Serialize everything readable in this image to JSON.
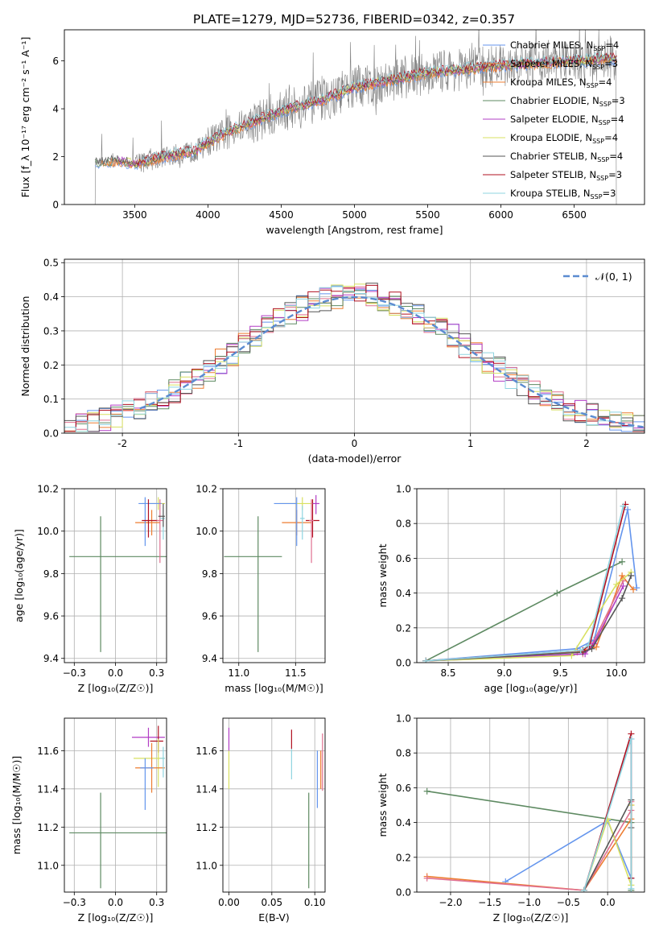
{
  "figure_title": "PLATE=1279, MJD=52736, FIBERID=0342, z=0.357",
  "palette": [
    "#6495ed",
    "#ed7d31",
    "#ed7d31",
    "#5e8a62",
    "#b23dc5",
    "#d8e060",
    "#555555",
    "#b11020",
    "#8fd4e0"
  ],
  "chart_data": [
    {
      "id": "spectrum",
      "type": "line",
      "xlabel": "wavelength [Angstrom, rest frame]",
      "ylabel": "Flux [f_λ 10⁻¹⁷ erg cm⁻² s⁻¹ A⁻¹]",
      "xlim": [
        3020,
        6980
      ],
      "ylim": [
        0,
        7.3
      ],
      "xticks": [
        3500,
        4000,
        4500,
        5000,
        5500,
        6000,
        6500
      ],
      "yticks": [
        0,
        2,
        4,
        6
      ],
      "legend_position": "top-right",
      "legend": [
        {
          "pre": "Chabrier MILES, N",
          "sub": "SSP",
          "post": "=4"
        },
        {
          "pre": "Salpeter MILES, N",
          "sub": "SSP",
          "post": "=3"
        },
        {
          "pre": "Kroupa MILES, N",
          "sub": "SSP",
          "post": "=4"
        },
        {
          "pre": "Chabrier ELODIE, N",
          "sub": "SSP",
          "post": "=3"
        },
        {
          "pre": "Salpeter ELODIE, N",
          "sub": "SSP",
          "post": "=4"
        },
        {
          "pre": "Kroupa ELODIE, N",
          "sub": "SSP",
          "post": "=4"
        },
        {
          "pre": "Chabrier STELIB, N",
          "sub": "SSP",
          "post": "=4"
        },
        {
          "pre": "Salpeter STELIB, N",
          "sub": "SSP",
          "post": "=3"
        },
        {
          "pre": "Kroupa STELIB, N",
          "sub": "SSP",
          "post": "=3"
        }
      ],
      "data_color": "#808080",
      "data_range": [
        3230,
        6790
      ],
      "continuum": [
        [
          3230,
          1.75
        ],
        [
          3400,
          1.85
        ],
        [
          3500,
          1.7
        ],
        [
          3700,
          2.0
        ],
        [
          3900,
          2.2
        ],
        [
          4000,
          2.6
        ],
        [
          4200,
          3.2
        ],
        [
          4500,
          3.9
        ],
        [
          4800,
          4.4
        ],
        [
          5000,
          4.9
        ],
        [
          5500,
          5.5
        ],
        [
          6000,
          5.8
        ],
        [
          6500,
          6.0
        ],
        [
          6790,
          6.1
        ]
      ]
    },
    {
      "id": "residuals",
      "type": "histogram",
      "xlabel": "(data-model)/error",
      "ylabel": "Normed distribution",
      "xlim": [
        -2.5,
        2.5
      ],
      "ylim": [
        0,
        0.51
      ],
      "xticks": [
        -2,
        -1,
        0,
        1,
        2
      ],
      "yticks": [
        0.0,
        0.1,
        0.2,
        0.3,
        0.4,
        0.5
      ],
      "legend_label": "𝒩(0, 1)",
      "legend_position": "top-right",
      "normal_color": "#5b8bd0",
      "bin_width": 0.1,
      "series_colors": [
        "#6495ed",
        "#ed7d31",
        "#e07090",
        "#5e8a62",
        "#b23dc5",
        "#d8e060",
        "#555555",
        "#b11020",
        "#8fd4e0"
      ]
    },
    {
      "id": "age_vs_Z",
      "type": "errorbar",
      "xlabel": "Z [log₁₀(Z/Z☉)]",
      "ylabel": "age  [log₁₀(age/yr)]",
      "xlim": [
        -0.31,
        0.31
      ],
      "ylim": [
        9.38,
        10.2
      ],
      "xticks": [
        -0.25,
        0.0,
        0.25
      ],
      "yticks": [
        9.4,
        9.6,
        9.8,
        10.0,
        10.2
      ],
      "points": [
        {
          "x": -0.09,
          "xerr": [
            0.19,
            0.4
          ],
          "y": 9.88,
          "yerr": [
            0.45,
            0.19
          ],
          "c": "#5e8a62"
        },
        {
          "x": 0.26,
          "xerr": [
            0.1,
            0.04
          ],
          "y": 10.13,
          "yerr": [
            0.03,
            0.03
          ],
          "c": "#d8e060"
        },
        {
          "x": 0.22,
          "xerr": [
            0.1,
            0.05
          ],
          "y": 10.04,
          "yerr": [
            0.06,
            0.06
          ],
          "c": "#ed7d31"
        },
        {
          "x": 0.18,
          "xerr": [
            0.04,
            0.1
          ],
          "y": 10.13,
          "yerr": [
            0.2,
            0.03
          ],
          "c": "#6495ed"
        },
        {
          "x": 0.2,
          "xerr": [
            0.04,
            0.06
          ],
          "y": 10.05,
          "yerr": [
            0.08,
            0.1
          ],
          "c": "#b11020"
        },
        {
          "x": 0.27,
          "xerr": [
            0.02,
            0.02
          ],
          "y": 10.05,
          "yerr": [
            0.2,
            0.1
          ],
          "c": "#e07090"
        },
        {
          "x": 0.29,
          "xerr": [
            0.02,
            0.01
          ],
          "y": 10.06,
          "yerr": [
            0.1,
            0.06
          ],
          "c": "#8fd4e0"
        },
        {
          "x": 0.29,
          "xerr": [
            0.03,
            0.01
          ],
          "y": 10.07,
          "yerr": [
            0.05,
            0.06
          ],
          "c": "#555555"
        }
      ]
    },
    {
      "id": "age_vs_mass",
      "type": "errorbar",
      "xlabel": "mass [log₁₀(M/M☉)]",
      "ylabel": "",
      "xlim": [
        10.86,
        11.76
      ],
      "ylim": [
        9.38,
        10.2
      ],
      "xticks": [
        11.0,
        11.5
      ],
      "yticks": [
        9.4,
        9.6,
        9.8,
        10.0,
        10.2
      ],
      "points": [
        {
          "x": 11.17,
          "xerr": [
            0.3,
            0.21
          ],
          "y": 9.88,
          "yerr": [
            0.45,
            0.19
          ],
          "c": "#5e8a62"
        },
        {
          "x": 11.56,
          "xerr": [
            0.2,
            0.1
          ],
          "y": 10.13,
          "yerr": [
            0.03,
            0.03
          ],
          "c": "#d8e060"
        },
        {
          "x": 11.51,
          "xerr": [
            0.13,
            0.13
          ],
          "y": 10.04,
          "yerr": [
            0.06,
            0.06
          ],
          "c": "#ed7d31"
        },
        {
          "x": 11.51,
          "xerr": [
            0.2,
            0.0
          ],
          "y": 10.13,
          "yerr": [
            0.2,
            0.03
          ],
          "c": "#6495ed"
        },
        {
          "x": 11.65,
          "xerr": [
            0.06,
            0.06
          ],
          "y": 10.05,
          "yerr": [
            0.08,
            0.1
          ],
          "c": "#b11020"
        },
        {
          "x": 11.68,
          "xerr": [
            0.03,
            0.03
          ],
          "y": 10.13,
          "yerr": [
            0.05,
            0.04
          ],
          "c": "#b23dc5"
        },
        {
          "x": 11.64,
          "xerr": [
            0.02,
            0.02
          ],
          "y": 10.05,
          "yerr": [
            0.2,
            0.1
          ],
          "c": "#e07090"
        },
        {
          "x": 11.56,
          "xerr": [
            0.02,
            0.02
          ],
          "y": 10.06,
          "yerr": [
            0.1,
            0.06
          ],
          "c": "#8fd4e0"
        }
      ]
    },
    {
      "id": "massweight_vs_age",
      "type": "line",
      "xlabel": "age  [log₁₀(age/yr)]",
      "ylabel": "mass weight",
      "xlim": [
        8.22,
        10.25
      ],
      "ylim": [
        0,
        1.0
      ],
      "xticks": [
        8.5,
        9.0,
        9.5,
        10.0
      ],
      "yticks": [
        0.0,
        0.2,
        0.4,
        0.6,
        0.8,
        1.0
      ],
      "series": [
        {
          "c": "#5e8a62",
          "x": [
            8.3,
            9.47,
            10.05
          ],
          "y": [
            0.01,
            0.4,
            0.58
          ]
        },
        {
          "c": "#6495ed",
          "x": [
            8.3,
            9.65,
            9.8,
            10.1,
            10.18
          ],
          "y": [
            0.01,
            0.08,
            0.13,
            0.88,
            0.43
          ]
        },
        {
          "c": "#ed7d31",
          "x": [
            8.3,
            9.65,
            9.82,
            10.05,
            10.15
          ],
          "y": [
            0.01,
            0.06,
            0.09,
            0.5,
            0.42
          ]
        },
        {
          "c": "#e07090",
          "x": [
            8.3,
            9.7,
            9.78,
            10.06
          ],
          "y": [
            0.01,
            0.05,
            0.1,
            0.47
          ]
        },
        {
          "c": "#b23dc5",
          "x": [
            8.3,
            9.72,
            9.8,
            10.06
          ],
          "y": [
            0.01,
            0.05,
            0.11,
            0.44
          ]
        },
        {
          "c": "#d8e060",
          "x": [
            8.3,
            9.6,
            10.0,
            10.13
          ],
          "y": [
            0.01,
            0.04,
            0.45,
            0.52
          ]
        },
        {
          "c": "#555555",
          "x": [
            8.3,
            9.7,
            9.78,
            10.05,
            10.13
          ],
          "y": [
            0.01,
            0.06,
            0.08,
            0.37,
            0.5
          ]
        },
        {
          "c": "#b11020",
          "x": [
            8.3,
            9.7,
            9.76,
            10.08
          ],
          "y": [
            0.01,
            0.07,
            0.1,
            0.91
          ]
        },
        {
          "c": "#8fd4e0",
          "x": [
            8.3,
            9.68,
            9.75,
            10.06
          ],
          "y": [
            0.01,
            0.07,
            0.1,
            0.9
          ]
        }
      ]
    },
    {
      "id": "mass_vs_Z",
      "type": "errorbar",
      "xlabel": "Z [log₁₀(Z/Z☉)]",
      "ylabel": "mass [log₁₀(M/M☉)]",
      "xlim": [
        -0.31,
        0.31
      ],
      "ylim": [
        10.86,
        11.77
      ],
      "xticks": [
        -0.25,
        0.0,
        0.25
      ],
      "yticks": [
        11.0,
        11.2,
        11.4,
        11.6
      ],
      "points": [
        {
          "x": -0.09,
          "xerr": [
            0.19,
            0.4
          ],
          "y": 11.17,
          "yerr": [
            0.29,
            0.21
          ],
          "c": "#5e8a62"
        },
        {
          "x": 0.2,
          "xerr": [
            0.1,
            0.1
          ],
          "y": 11.67,
          "yerr": [
            0.05,
            0.05
          ],
          "c": "#b23dc5"
        },
        {
          "x": 0.26,
          "xerr": [
            0.05,
            0.03
          ],
          "y": 11.65,
          "yerr": [
            0.06,
            0.08
          ],
          "c": "#b11020"
        },
        {
          "x": 0.26,
          "xerr": [
            0.15,
            0.04
          ],
          "y": 11.56,
          "yerr": [
            0.15,
            0.1
          ],
          "c": "#d8e060"
        },
        {
          "x": 0.22,
          "xerr": [
            0.1,
            0.08
          ],
          "y": 11.51,
          "yerr": [
            0.13,
            0.13
          ],
          "c": "#ed7d31"
        },
        {
          "x": 0.18,
          "xerr": [
            0.03,
            0.05
          ],
          "y": 11.51,
          "yerr": [
            0.22,
            0.05
          ],
          "c": "#6495ed"
        },
        {
          "x": 0.29,
          "xerr": [
            0.02,
            0.01
          ],
          "y": 11.56,
          "yerr": [
            0.1,
            0.06
          ],
          "c": "#8fd4e0"
        }
      ]
    },
    {
      "id": "mass_vs_EBV",
      "type": "errorbar",
      "xlabel": "E(B-V)",
      "ylabel": "",
      "xlim": [
        -0.007,
        0.112
      ],
      "ylim": [
        10.86,
        11.77
      ],
      "xticks": [
        0.0,
        0.05,
        0.1
      ],
      "yticks": [
        11.0,
        11.2,
        11.4,
        11.6
      ],
      "points": [
        {
          "x": 0.0,
          "xerr": [
            0,
            0
          ],
          "y": 11.5,
          "yerr": [
            0.1,
            0.1
          ],
          "c": "#d8e060"
        },
        {
          "x": 0.0,
          "xerr": [
            0,
            0
          ],
          "y": 11.66,
          "yerr": [
            0.06,
            0.06
          ],
          "c": "#b23dc5"
        },
        {
          "x": 0.073,
          "xerr": [
            0,
            0
          ],
          "y": 11.53,
          "yerr": [
            0.08,
            0.08
          ],
          "c": "#8fd4e0"
        },
        {
          "x": 0.073,
          "xerr": [
            0,
            0
          ],
          "y": 11.65,
          "yerr": [
            0.04,
            0.06
          ],
          "c": "#b11020"
        },
        {
          "x": 0.093,
          "xerr": [
            0,
            0
          ],
          "y": 11.17,
          "yerr": [
            0.29,
            0.21
          ],
          "c": "#5e8a62"
        },
        {
          "x": 0.103,
          "xerr": [
            0,
            0
          ],
          "y": 11.5,
          "yerr": [
            0.2,
            0.1
          ],
          "c": "#6495ed"
        },
        {
          "x": 0.107,
          "xerr": [
            0,
            0
          ],
          "y": 11.5,
          "yerr": [
            0.1,
            0.1
          ],
          "c": "#ed7d31"
        },
        {
          "x": 0.109,
          "xerr": [
            0,
            0
          ],
          "y": 11.54,
          "yerr": [
            0.15,
            0.15
          ],
          "c": "#e07090"
        }
      ]
    },
    {
      "id": "massweight_vs_Z",
      "type": "line",
      "xlabel": "Z [log₁₀(Z/Z☉)]",
      "ylabel": "mass weight",
      "xlim": [
        -2.43,
        0.47
      ],
      "ylim": [
        0,
        1.0
      ],
      "xticks": [
        -2.0,
        -1.5,
        -1.0,
        -0.5,
        0.0
      ],
      "yticks": [
        0.0,
        0.2,
        0.4,
        0.6,
        0.8,
        1.0
      ],
      "series": [
        {
          "c": "#5e8a62",
          "x": [
            -2.3,
            0.3,
            0.3
          ],
          "y": [
            0.58,
            0.4,
            0.01
          ]
        },
        {
          "c": "#6495ed",
          "x": [
            -1.3,
            0.0,
            0.3,
            0.3
          ],
          "y": [
            0.06,
            0.41,
            0.08,
            0.88
          ]
        },
        {
          "c": "#ed7d31",
          "x": [
            -2.3,
            -0.3,
            0.3,
            0.3
          ],
          "y": [
            0.09,
            0.01,
            0.42,
            0.5
          ]
        },
        {
          "c": "#e07090",
          "x": [
            -2.3,
            -0.3,
            0.3,
            0.3
          ],
          "y": [
            0.08,
            0.01,
            0.47,
            0.52
          ]
        },
        {
          "c": "#d8e060",
          "x": [
            -0.3,
            0.0,
            0.3,
            0.3
          ],
          "y": [
            0.01,
            0.42,
            0.04,
            0.5
          ]
        },
        {
          "c": "#555555",
          "x": [
            -0.3,
            0.3,
            0.3
          ],
          "y": [
            0.01,
            0.53,
            0.37
          ]
        },
        {
          "c": "#b11020",
          "x": [
            -0.3,
            0.3,
            0.3
          ],
          "y": [
            0.01,
            0.91,
            0.08
          ]
        },
        {
          "c": "#8fd4e0",
          "x": [
            -0.3,
            0.3,
            0.3
          ],
          "y": [
            0.01,
            0.88,
            0.02
          ]
        }
      ]
    }
  ]
}
